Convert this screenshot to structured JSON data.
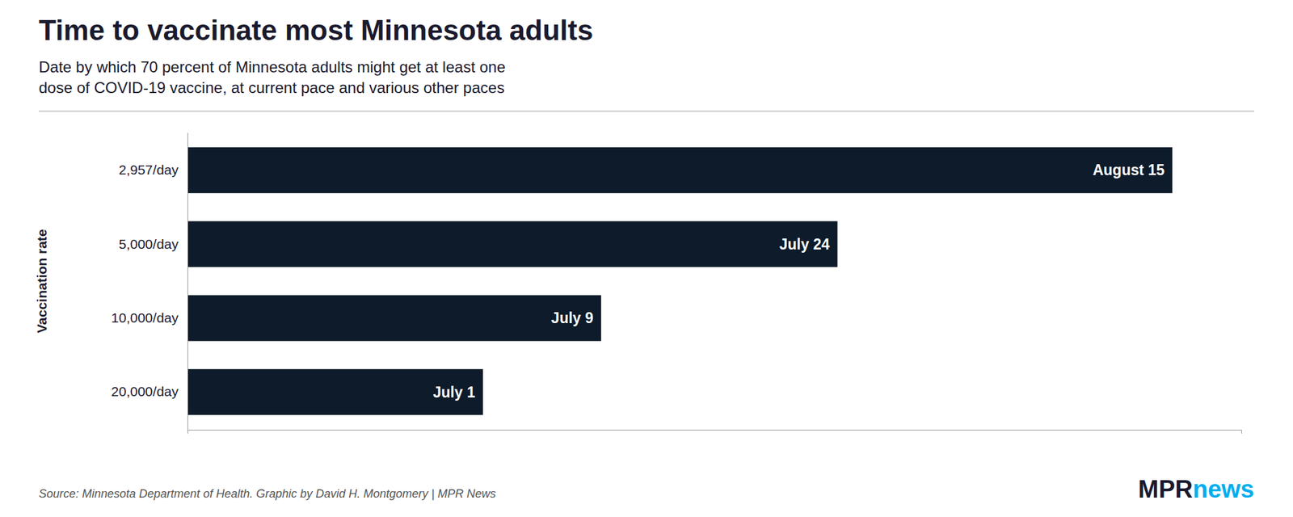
{
  "chart_data": {
    "type": "bar",
    "orientation": "horizontal",
    "title": "Time to vaccinate most Minnesota adults",
    "subtitle": [
      "Date by which 70 percent of Minnesota adults might get at least one",
      "dose of COVID-19 vaccine, at current pace and various other paces"
    ],
    "ylabel": "Vaccination rate",
    "categories": [
      "2,957/day",
      "5,000/day",
      "10,000/day",
      "20,000/day"
    ],
    "values": [
      100,
      66,
      42,
      30
    ],
    "value_labels": [
      "August 15",
      "July 24",
      "July 9",
      "July 1"
    ],
    "data_labels": true,
    "color": "#0d1b2a",
    "xlim": [
      0,
      107
    ],
    "tick_labels": "y",
    "annotations": [
      "Source: Minnesota Department of Health. Graphic by David H. Montgomery | MPR News",
      "MPR",
      "news"
    ]
  }
}
